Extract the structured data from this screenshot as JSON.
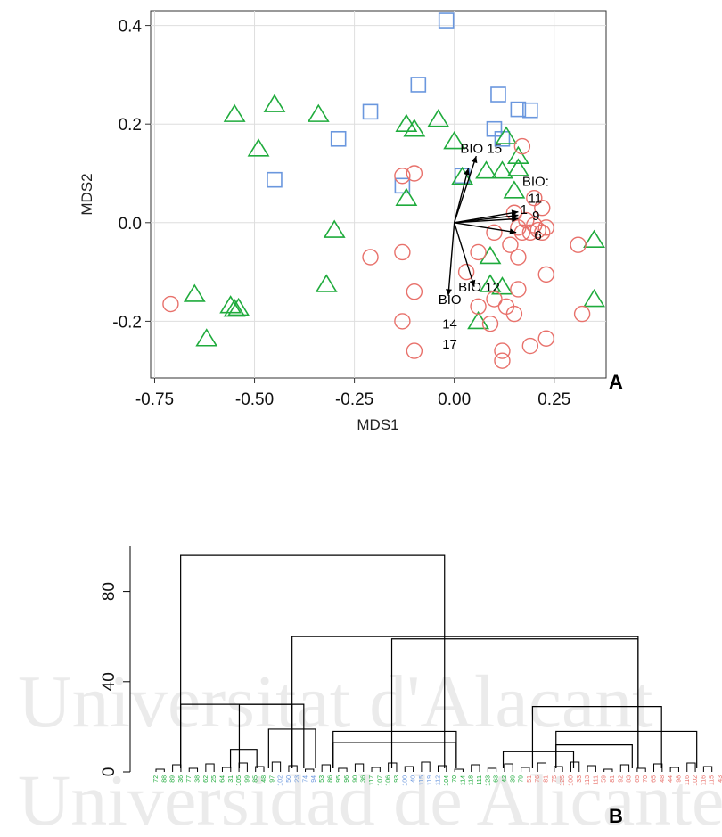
{
  "watermark": {
    "line1": "Universitat d'Alacant",
    "line2": "Universidad de Alicante"
  },
  "chart_data": [
    {
      "type": "scatter",
      "panel_label": "A",
      "xlabel": "MDS1",
      "ylabel": "MDS2",
      "xlim": [
        -0.76,
        0.38
      ],
      "ylim": [
        -0.315,
        0.43
      ],
      "xticks": [
        -0.75,
        -0.5,
        -0.25,
        0.0,
        0.25
      ],
      "xtick_labels": [
        "-0.75",
        "-0.50",
        "-0.25",
        "0.00",
        "0.25"
      ],
      "yticks": [
        -0.2,
        0.0,
        0.2,
        0.4
      ],
      "ytick_labels": [
        "-0.2",
        "0.0",
        "0.2",
        "0.4"
      ],
      "grid": true,
      "panel_background": "#ffffff",
      "series": [
        {
          "marker": "square",
          "color": "#6a97de",
          "points": [
            [
              -0.02,
              0.41
            ],
            [
              -0.09,
              0.28
            ],
            [
              0.11,
              0.26
            ],
            [
              -0.21,
              0.225
            ],
            [
              0.16,
              0.23
            ],
            [
              0.19,
              0.228
            ],
            [
              -0.29,
              0.17
            ],
            [
              0.1,
              0.19
            ],
            [
              0.12,
              0.17
            ],
            [
              -0.45,
              0.087
            ],
            [
              -0.13,
              0.075
            ],
            [
              0.02,
              0.095
            ]
          ]
        },
        {
          "marker": "triangle",
          "color": "#1fab3c",
          "points": [
            [
              -0.45,
              0.24
            ],
            [
              -0.55,
              0.22
            ],
            [
              -0.34,
              0.22
            ],
            [
              -0.04,
              0.21
            ],
            [
              -0.12,
              0.2
            ],
            [
              -0.1,
              0.19
            ],
            [
              -0.49,
              0.15
            ],
            [
              0.0,
              0.165
            ],
            [
              0.13,
              0.175
            ],
            [
              0.16,
              0.135
            ],
            [
              0.16,
              0.11
            ],
            [
              0.12,
              0.105
            ],
            [
              0.08,
              0.105
            ],
            [
              0.02,
              0.093
            ],
            [
              0.15,
              0.065
            ],
            [
              -0.12,
              0.05
            ],
            [
              -0.3,
              -0.015
            ],
            [
              0.35,
              -0.035
            ],
            [
              0.09,
              -0.068
            ],
            [
              0.09,
              -0.125
            ],
            [
              0.12,
              -0.13
            ],
            [
              -0.32,
              -0.125
            ],
            [
              -0.65,
              -0.145
            ],
            [
              -0.56,
              -0.168
            ],
            [
              -0.55,
              -0.175
            ],
            [
              -0.54,
              -0.173
            ],
            [
              0.35,
              -0.155
            ],
            [
              0.06,
              -0.2
            ],
            [
              -0.62,
              -0.235
            ]
          ]
        },
        {
          "marker": "circle",
          "color": "#e8716b",
          "points": [
            [
              0.17,
              0.155
            ],
            [
              0.2,
              0.05
            ],
            [
              0.22,
              0.03
            ],
            [
              0.15,
              0.02
            ],
            [
              0.18,
              0.005
            ],
            [
              0.2,
              -0.005
            ],
            [
              0.21,
              -0.015
            ],
            [
              0.23,
              -0.01
            ],
            [
              0.16,
              -0.01
            ],
            [
              0.17,
              -0.02
            ],
            [
              0.19,
              -0.02
            ],
            [
              0.22,
              -0.02
            ],
            [
              0.1,
              -0.02
            ],
            [
              0.14,
              -0.045
            ],
            [
              0.31,
              -0.045
            ],
            [
              0.06,
              -0.06
            ],
            [
              0.16,
              -0.07
            ],
            [
              -0.21,
              -0.07
            ],
            [
              -0.13,
              -0.06
            ],
            [
              0.03,
              -0.1
            ],
            [
              0.23,
              -0.105
            ],
            [
              -0.1,
              -0.14
            ],
            [
              0.16,
              -0.135
            ],
            [
              0.1,
              -0.155
            ],
            [
              0.06,
              -0.17
            ],
            [
              0.13,
              -0.17
            ],
            [
              0.32,
              -0.185
            ],
            [
              0.15,
              -0.185
            ],
            [
              -0.13,
              -0.2
            ],
            [
              0.09,
              -0.205
            ],
            [
              0.23,
              -0.235
            ],
            [
              0.19,
              -0.25
            ],
            [
              -0.1,
              -0.26
            ],
            [
              0.12,
              -0.26
            ],
            [
              0.12,
              -0.28
            ],
            [
              -0.71,
              -0.165
            ],
            [
              -0.1,
              0.1
            ],
            [
              -0.13,
              0.095
            ]
          ]
        }
      ],
      "arrows": {
        "origin": [
          0.0,
          0.0
        ],
        "vectors": [
          [
            0.055,
            0.135
          ],
          [
            0.035,
            0.11
          ],
          [
            0.16,
            0.022
          ],
          [
            0.16,
            0.015
          ],
          [
            0.16,
            0.008
          ],
          [
            0.155,
            -0.02
          ],
          [
            -0.015,
            -0.148
          ],
          [
            0.05,
            -0.13
          ]
        ]
      },
      "annotations": [
        {
          "text": "BIO 15",
          "x": 0.015,
          "y": 0.142
        },
        {
          "text": "BIO:",
          "x": 0.17,
          "y": 0.075
        },
        {
          "text": "11",
          "x": 0.185,
          "y": 0.04
        },
        {
          "text": "1",
          "x": 0.165,
          "y": 0.018
        },
        {
          "text": "9",
          "x": 0.195,
          "y": 0.005
        },
        {
          "text": "6",
          "x": 0.2,
          "y": -0.035
        },
        {
          "text": "BIO 12",
          "x": 0.01,
          "y": -0.14
        },
        {
          "text": "BIO",
          "x": -0.04,
          "y": -0.165
        },
        {
          "text": "14",
          "x": -0.03,
          "y": -0.215
        },
        {
          "text": "17",
          "x": -0.03,
          "y": -0.255
        }
      ]
    },
    {
      "type": "dendrogram",
      "panel_label": "B",
      "ylim": [
        0,
        100
      ],
      "yticks": [
        0,
        40,
        80
      ],
      "ytick_labels": [
        "0",
        "40",
        "80"
      ],
      "xlim": [
        0,
        1
      ],
      "merges": [
        {
          "left": 0.08,
          "right": 0.53,
          "height": 96
        },
        {
          "left": 0.08,
          "right": 0.27,
          "height": 30
        },
        {
          "left": 0.27,
          "right": 0.86,
          "height": 60
        },
        {
          "left": 0.44,
          "right": 0.86,
          "height": 59
        },
        {
          "left": 0.18,
          "right": 0.29,
          "height": 30
        },
        {
          "left": 0.165,
          "right": 0.21,
          "height": 10
        },
        {
          "left": 0.23,
          "right": 0.31,
          "height": 19
        },
        {
          "left": 0.34,
          "right": 0.55,
          "height": 18
        },
        {
          "left": 0.34,
          "right": 0.55,
          "height": 13
        },
        {
          "left": 0.68,
          "right": 0.9,
          "height": 29
        },
        {
          "left": 0.63,
          "right": 0.75,
          "height": 9
        },
        {
          "left": 0.72,
          "right": 0.96,
          "height": 18
        },
        {
          "left": 0.72,
          "right": 0.85,
          "height": 12
        }
      ],
      "leaf_colors": [
        "#1fab3c",
        "#1fab3c",
        "#1fab3c",
        "#6a97de",
        "#1fab3c",
        "#1fab3c",
        "#6a97de",
        "#1fab3c",
        "#1fab3c",
        "#e8716b",
        "#e8716b",
        "#e8716b",
        "#e8716b",
        "#e8716b"
      ],
      "leaf_labels": [
        "72",
        "88",
        "89",
        "36",
        "77",
        "38",
        "62",
        "25",
        "64",
        "31",
        "105",
        "99",
        "85",
        "48",
        "97",
        "102",
        "50",
        "23",
        "74",
        "94",
        "53",
        "86",
        "95",
        "96",
        "90",
        "36",
        "117",
        "107",
        "106",
        "93",
        "100",
        "40",
        "115",
        "119",
        "112",
        "104",
        "70",
        "114",
        "118",
        "111",
        "123",
        "63",
        "42",
        "39",
        "79",
        "51",
        "76",
        "81",
        "75",
        "125",
        "100",
        "33",
        "113",
        "111",
        "59",
        "81",
        "92",
        "83",
        "65",
        "70",
        "65",
        "48",
        "44",
        "98",
        "116",
        "102",
        "116",
        "115",
        "43"
      ]
    }
  ]
}
